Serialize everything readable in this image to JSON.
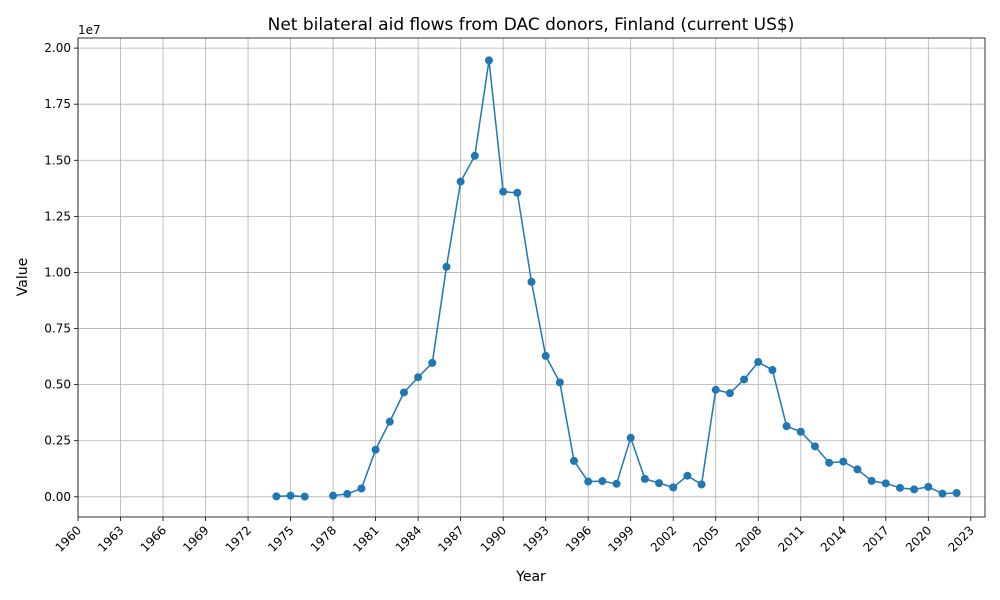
{
  "chart_data": {
    "type": "line",
    "title": "Net bilateral aid flows from DAC donors, Finland (current US$)",
    "xlabel": "Year",
    "ylabel": "Value",
    "offset_label": "1e7",
    "xlim": [
      1960,
      2024
    ],
    "ylim": [
      -900000,
      20450000
    ],
    "grid": true,
    "x_ticks": [
      1960,
      1963,
      1966,
      1969,
      1972,
      1975,
      1978,
      1981,
      1984,
      1987,
      1990,
      1993,
      1996,
      1999,
      2002,
      2005,
      2008,
      2011,
      2014,
      2017,
      2020,
      2023
    ],
    "y_ticks": [
      0,
      2500000,
      5000000,
      7500000,
      10000000,
      12500000,
      15000000,
      17500000,
      20000000
    ],
    "y_tick_labels": [
      "0.00",
      "0.25",
      "0.50",
      "0.75",
      "1.00",
      "1.25",
      "1.50",
      "1.75",
      "2.00"
    ],
    "series_color": "#1f77b4",
    "series": [
      {
        "segments": [
          {
            "x": [
              1974,
              1975,
              1976
            ],
            "y": [
              20000,
              50000,
              10000
            ]
          },
          {
            "x": [
              1978,
              1979,
              1980,
              1981,
              1982,
              1983,
              1984,
              1985,
              1986,
              1987,
              1988,
              1989,
              1990,
              1991,
              1992,
              1993,
              1994,
              1995,
              1996,
              1997,
              1998,
              1999,
              2000,
              2001,
              2002,
              2003,
              2004,
              2005,
              2006,
              2007,
              2008,
              2009,
              2010,
              2011,
              2012,
              2013,
              2014,
              2015,
              2016,
              2017,
              2018,
              2019,
              2020,
              2021,
              2022
            ],
            "y": [
              50000,
              130000,
              370000,
              2100000,
              3350000,
              4650000,
              5330000,
              5970000,
              10250000,
              14050000,
              15200000,
              19450000,
              13600000,
              13550000,
              9580000,
              6280000,
              5100000,
              1600000,
              680000,
              700000,
              580000,
              2630000,
              800000,
              610000,
              420000,
              940000,
              550000,
              4770000,
              4620000,
              5230000,
              6010000,
              5650000,
              3150000,
              2900000,
              2250000,
              1520000,
              1570000,
              1220000,
              710000,
              600000,
              400000,
              330000,
              440000,
              140000,
              170000
            ]
          }
        ]
      }
    ]
  }
}
